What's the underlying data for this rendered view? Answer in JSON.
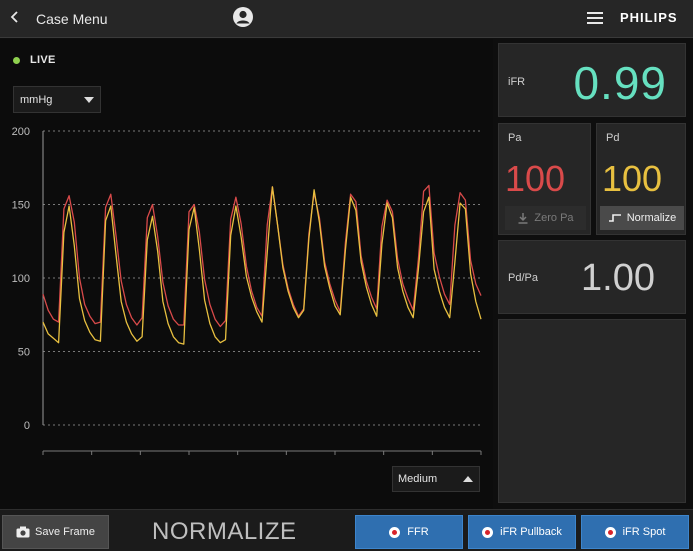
{
  "header": {
    "back_label": "Case Menu",
    "brand": "PHILIPS"
  },
  "status": {
    "live_label": "LIVE",
    "live_color": "#8fd14f"
  },
  "controls": {
    "unit_selected": "mmHg",
    "speed_selected": "Medium"
  },
  "chart_data": {
    "type": "line",
    "ylim": [
      0,
      200
    ],
    "y_ticks": [
      "200",
      "150",
      "100",
      "50",
      "0"
    ],
    "series": [
      {
        "color": "#d94a4a",
        "values": [
          89,
          78,
          72,
          70,
          147,
          156,
          138,
          100,
          82,
          74,
          69,
          70,
          148,
          157,
          129,
          98,
          82,
          73,
          68,
          73,
          141,
          150,
          128,
          97,
          81,
          72,
          68,
          68,
          145,
          150,
          131,
          99,
          82,
          72,
          67,
          71,
          140,
          155,
          137,
          108,
          91,
          80,
          74,
          136,
          162,
          136,
          109,
          93,
          82,
          74,
          79,
          130,
          158,
          141,
          111,
          96,
          85,
          77,
          124,
          157,
          152,
          115,
          98,
          87,
          79,
          135,
          153,
          145,
          113,
          96,
          86,
          78,
          113,
          159,
          163,
          117,
          101,
          89,
          82,
          136,
          158,
          153,
          112,
          96,
          88
        ]
      },
      {
        "color": "#e8c040",
        "values": [
          70,
          62,
          59,
          56,
          131,
          149,
          122,
          86,
          71,
          63,
          58,
          57,
          139,
          149,
          116,
          84,
          70,
          62,
          57,
          60,
          126,
          142,
          118,
          84,
          69,
          60,
          56,
          55,
          133,
          148,
          119,
          85,
          69,
          60,
          56,
          58,
          129,
          149,
          128,
          101,
          87,
          77,
          70,
          117,
          162,
          136,
          107,
          91,
          80,
          73,
          78,
          127,
          160,
          138,
          108,
          93,
          81,
          75,
          119,
          155,
          146,
          111,
          94,
          82,
          74,
          123,
          151,
          141,
          107,
          91,
          80,
          73,
          106,
          145,
          155,
          106,
          91,
          80,
          73,
          111,
          151,
          147,
          103,
          84,
          72
        ]
      }
    ]
  },
  "metrics": {
    "ifr_label": "iFR",
    "ifr_value": "0.99",
    "ifr_color": "#66e0c0",
    "pa_label": "Pa",
    "pa_value": "100",
    "pa_color": "#d94a4a",
    "pd_label": "Pd",
    "pd_value": "100",
    "pd_color": "#e8c040",
    "zero_pa_label": "Zero Pa",
    "normalize_label": "Normalize",
    "ratio_label": "Pd/Pa",
    "ratio_value": "1.00"
  },
  "footer": {
    "save_frame_label": "Save Frame",
    "mode_label": "NORMALIZE",
    "ffr_label": "FFR",
    "ifr_pullback_label": "iFR Pullback",
    "ifr_spot_label": "iFR Spot",
    "button_color": "#2f6fb0"
  }
}
